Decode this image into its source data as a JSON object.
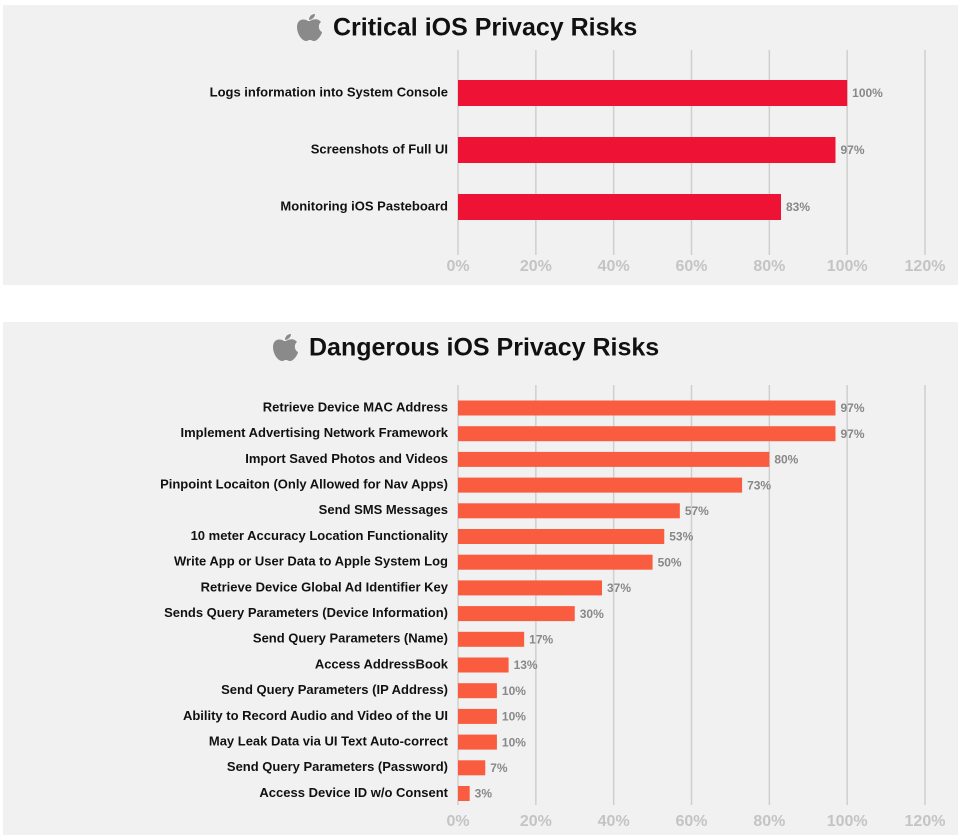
{
  "chart_data": [
    {
      "type": "bar",
      "orientation": "horizontal",
      "title": "Critical iOS Privacy Risks",
      "categories": [
        "Logs information into System Console",
        "Screenshots of Full UI",
        "Monitoring iOS Pasteboard"
      ],
      "values": [
        100,
        97,
        83
      ],
      "value_labels": [
        "100%",
        "97%",
        "83%"
      ],
      "color": "#ee1234",
      "xlim": [
        0,
        120
      ],
      "xticks": [
        {
          "value": 0,
          "label": "0%"
        },
        {
          "value": 20,
          "label": "20%"
        },
        {
          "value": 40,
          "label": "40%"
        },
        {
          "value": 60,
          "label": "60%"
        },
        {
          "value": 80,
          "label": "80%"
        },
        {
          "value": 100,
          "label": "100%"
        },
        {
          "value": 120,
          "label": "120%"
        }
      ],
      "grid": true
    },
    {
      "type": "bar",
      "orientation": "horizontal",
      "title": "Dangerous iOS Privacy Risks",
      "categories": [
        "Retrieve Device MAC Address",
        "Implement Advertising Network Framework",
        "Import Saved Photos and Videos",
        "Pinpoint Locaiton (Only Allowed for Nav Apps)",
        "Send SMS Messages",
        "10 meter Accuracy Location Functionality",
        "Write App or User Data to Apple System Log",
        "Retrieve Device Global Ad Identifier Key",
        "Sends Query Parameters (Device Information)",
        "Send Query Parameters (Name)",
        "Access AddressBook",
        "Send Query Parameters (IP Address)",
        "Ability to Record Audio and Video of the UI",
        "May Leak Data via UI Text Auto-correct",
        "Send Query Parameters (Password)",
        "Access Device ID w/o Consent"
      ],
      "values": [
        97,
        97,
        80,
        73,
        57,
        53,
        50,
        37,
        30,
        17,
        13,
        10,
        10,
        10,
        7,
        3
      ],
      "value_labels": [
        "97%",
        "97%",
        "80%",
        "73%",
        "57%",
        "53%",
        "50%",
        "37%",
        "30%",
        "17%",
        "13%",
        "10%",
        "10%",
        "10%",
        "7%",
        "3%"
      ],
      "color": "#fa5c3f",
      "xlim": [
        0,
        120
      ],
      "xticks": [
        {
          "value": 0,
          "label": "0%"
        },
        {
          "value": 20,
          "label": "20%"
        },
        {
          "value": 40,
          "label": "40%"
        },
        {
          "value": 60,
          "label": "60%"
        },
        {
          "value": 80,
          "label": "80%"
        },
        {
          "value": 100,
          "label": "100%"
        },
        {
          "value": 120,
          "label": "120%"
        }
      ],
      "grid": true
    }
  ]
}
